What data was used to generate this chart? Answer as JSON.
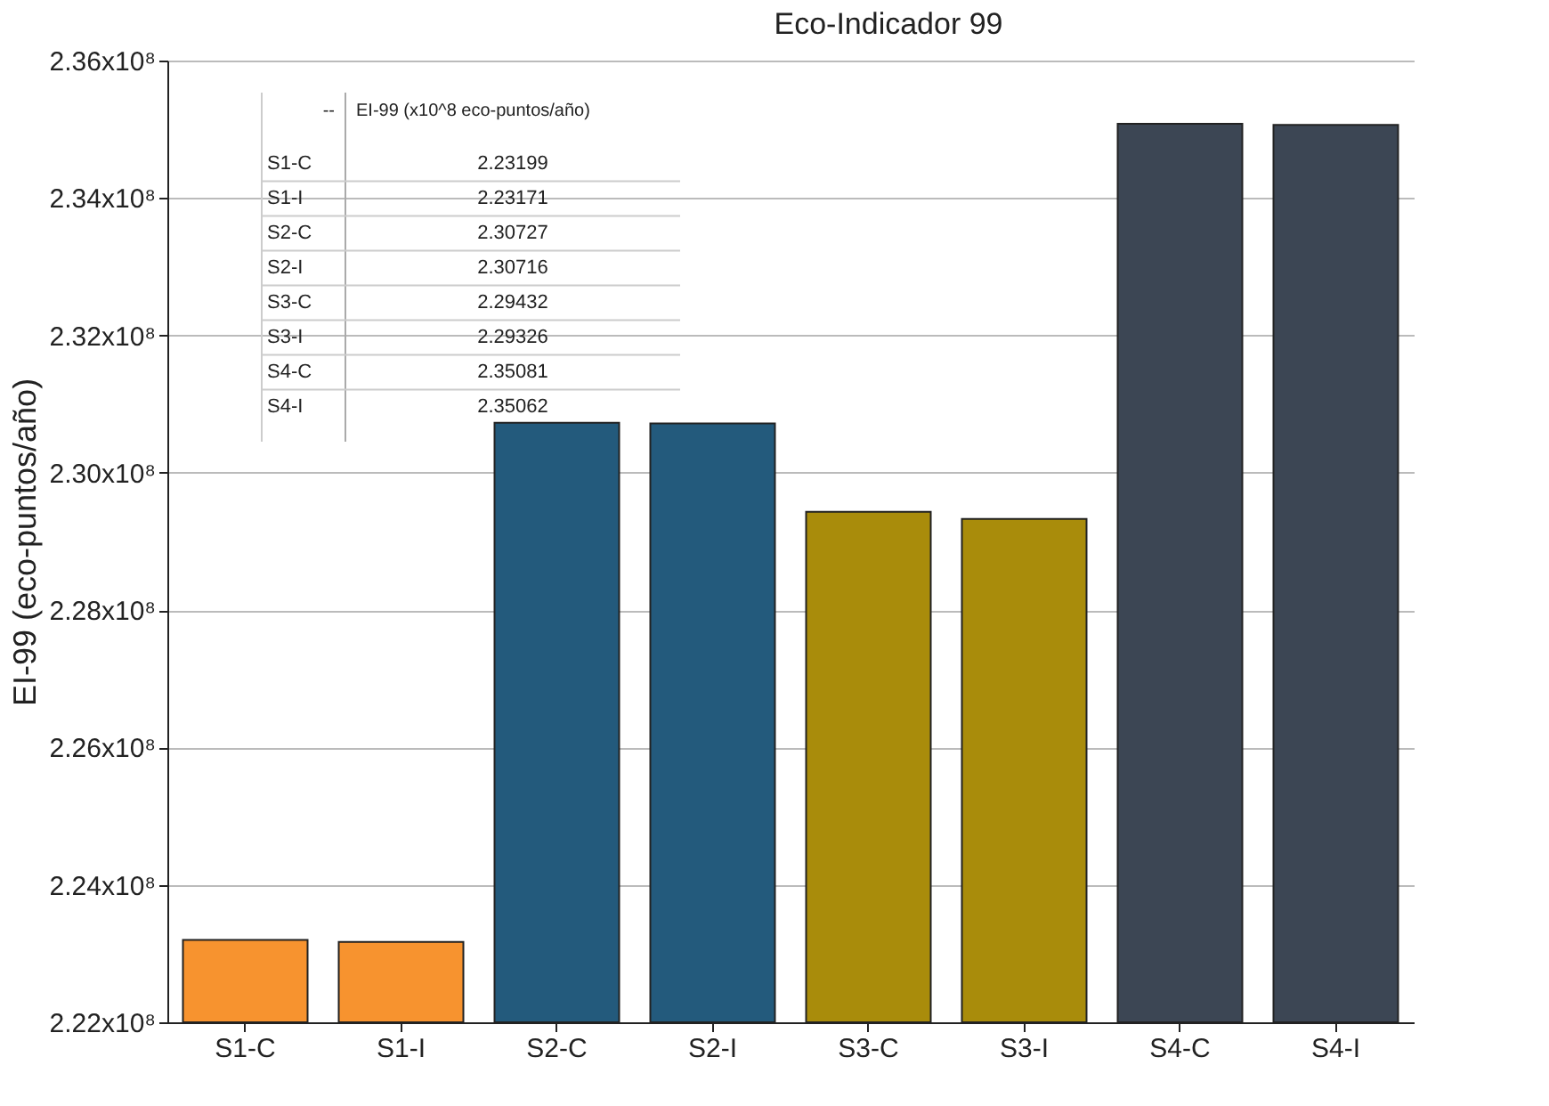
{
  "chart_data": {
    "type": "bar",
    "title": "Eco-Indicador 99",
    "ylabel": "EI-99 (eco-puntos/año)",
    "categories": [
      "S1-C",
      "S1-I",
      "S2-C",
      "S2-I",
      "S3-C",
      "S3-I",
      "S4-C",
      "S4-I"
    ],
    "values": [
      223199000,
      223171000,
      230727000,
      230716000,
      229432000,
      229326000,
      235081000,
      235062000
    ],
    "colors": [
      "#f7932f",
      "#f7932f",
      "#235a7c",
      "#235a7c",
      "#a98c0b",
      "#a98c0b",
      "#3c4654",
      "#3c4654"
    ],
    "annotations": [
      "--",
      "EI-99 (x10^8 eco-puntos/año)",
      "S1-C",
      "2.23199",
      "S1-I",
      "2.23171",
      "S2-C",
      "2.30727",
      "S2-I",
      "2.30716",
      "S3-C",
      "2.29432",
      "S3-I",
      "2.29326",
      "S4-C",
      "2.35081",
      "S4-I",
      "2.35062"
    ],
    "ylim": [
      222000000,
      236000000
    ],
    "yticks": [
      {
        "value": 222000000,
        "label": "2.22x10⁸"
      },
      {
        "value": 224000000,
        "label": "2.24x10⁸"
      },
      {
        "value": 226000000,
        "label": "2.26x10⁸"
      },
      {
        "value": 228000000,
        "label": "2.28x10⁸"
      },
      {
        "value": 230000000,
        "label": "2.30x10⁸"
      },
      {
        "value": 232000000,
        "label": "2.32x10⁸"
      },
      {
        "value": 234000000,
        "label": "2.34x10⁸"
      },
      {
        "value": 236000000,
        "label": "2.36x10⁸"
      }
    ],
    "grid": "y"
  }
}
